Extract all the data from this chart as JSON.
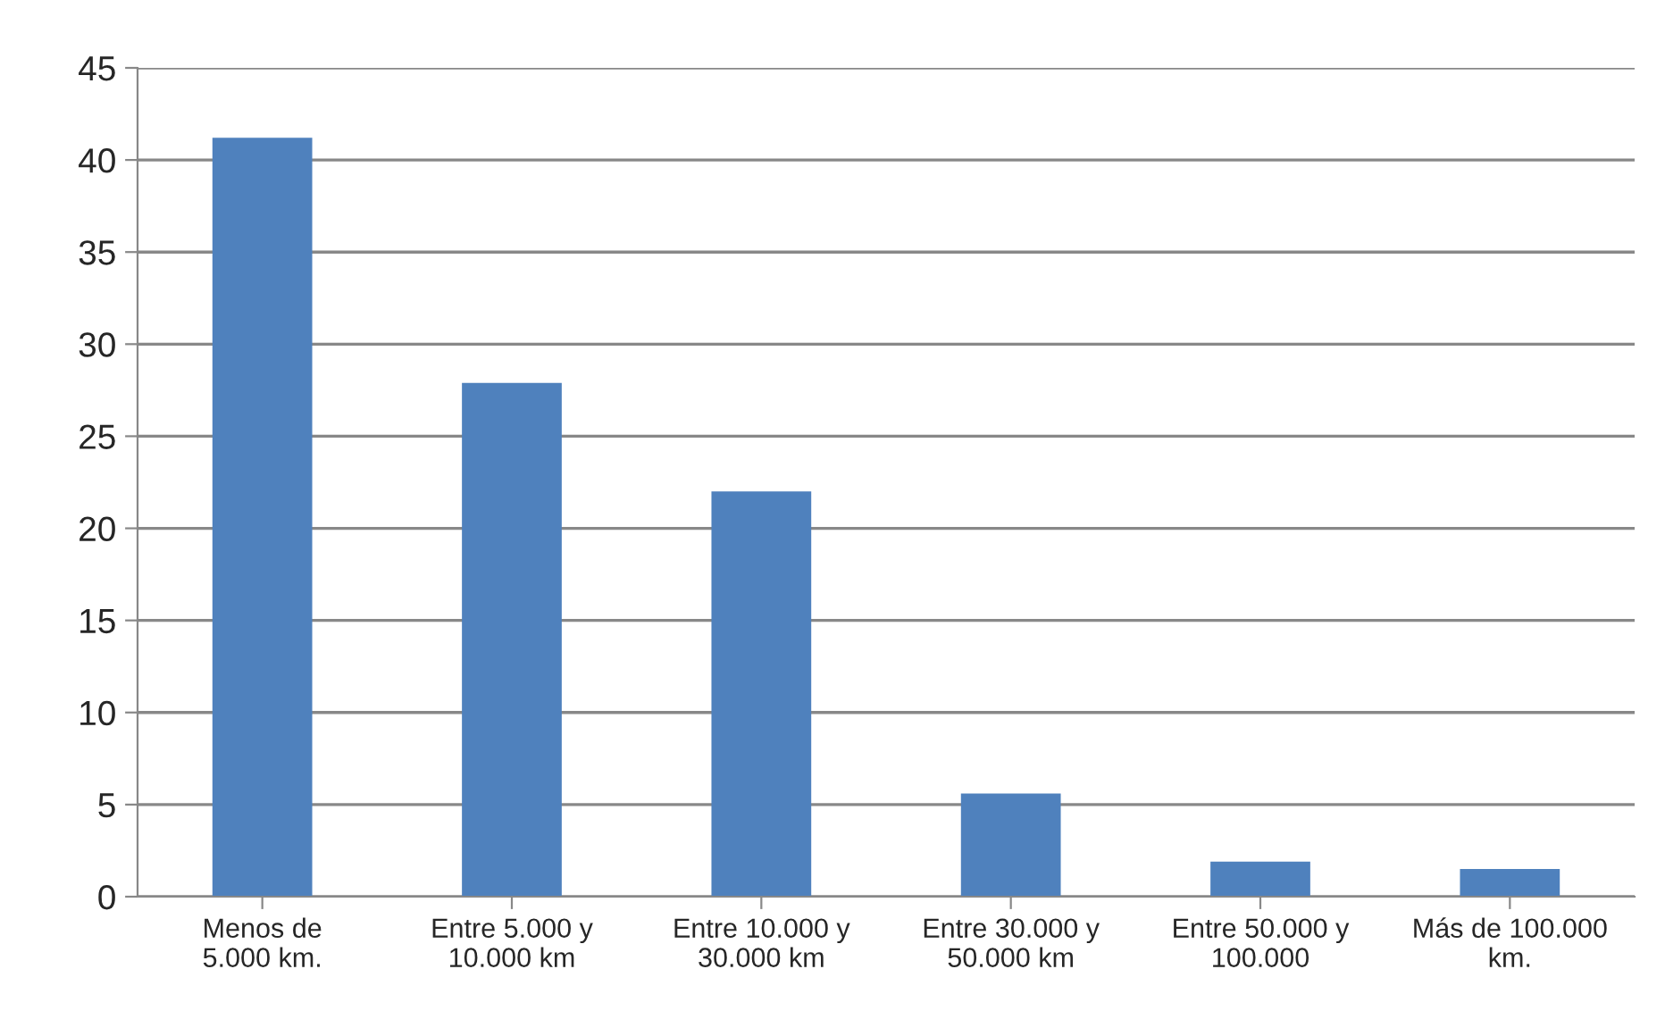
{
  "chart_data": {
    "type": "bar",
    "categories": [
      "Menos de\n5.000 km.",
      "Entre 5.000 y\n10.000 km",
      "Entre 10.000 y\n30.000 km",
      "Entre 30.000 y\n50.000 km",
      "Entre 50.000 y\n100.000",
      "Más de 100.000\nkm."
    ],
    "values": [
      41.2,
      27.9,
      22.0,
      5.6,
      1.9,
      1.5
    ],
    "color": "#4f81bd",
    "ylim": [
      0,
      45
    ],
    "yticks": [
      0,
      5,
      10,
      15,
      20,
      25,
      30,
      35,
      40,
      45
    ],
    "grid": "y"
  }
}
